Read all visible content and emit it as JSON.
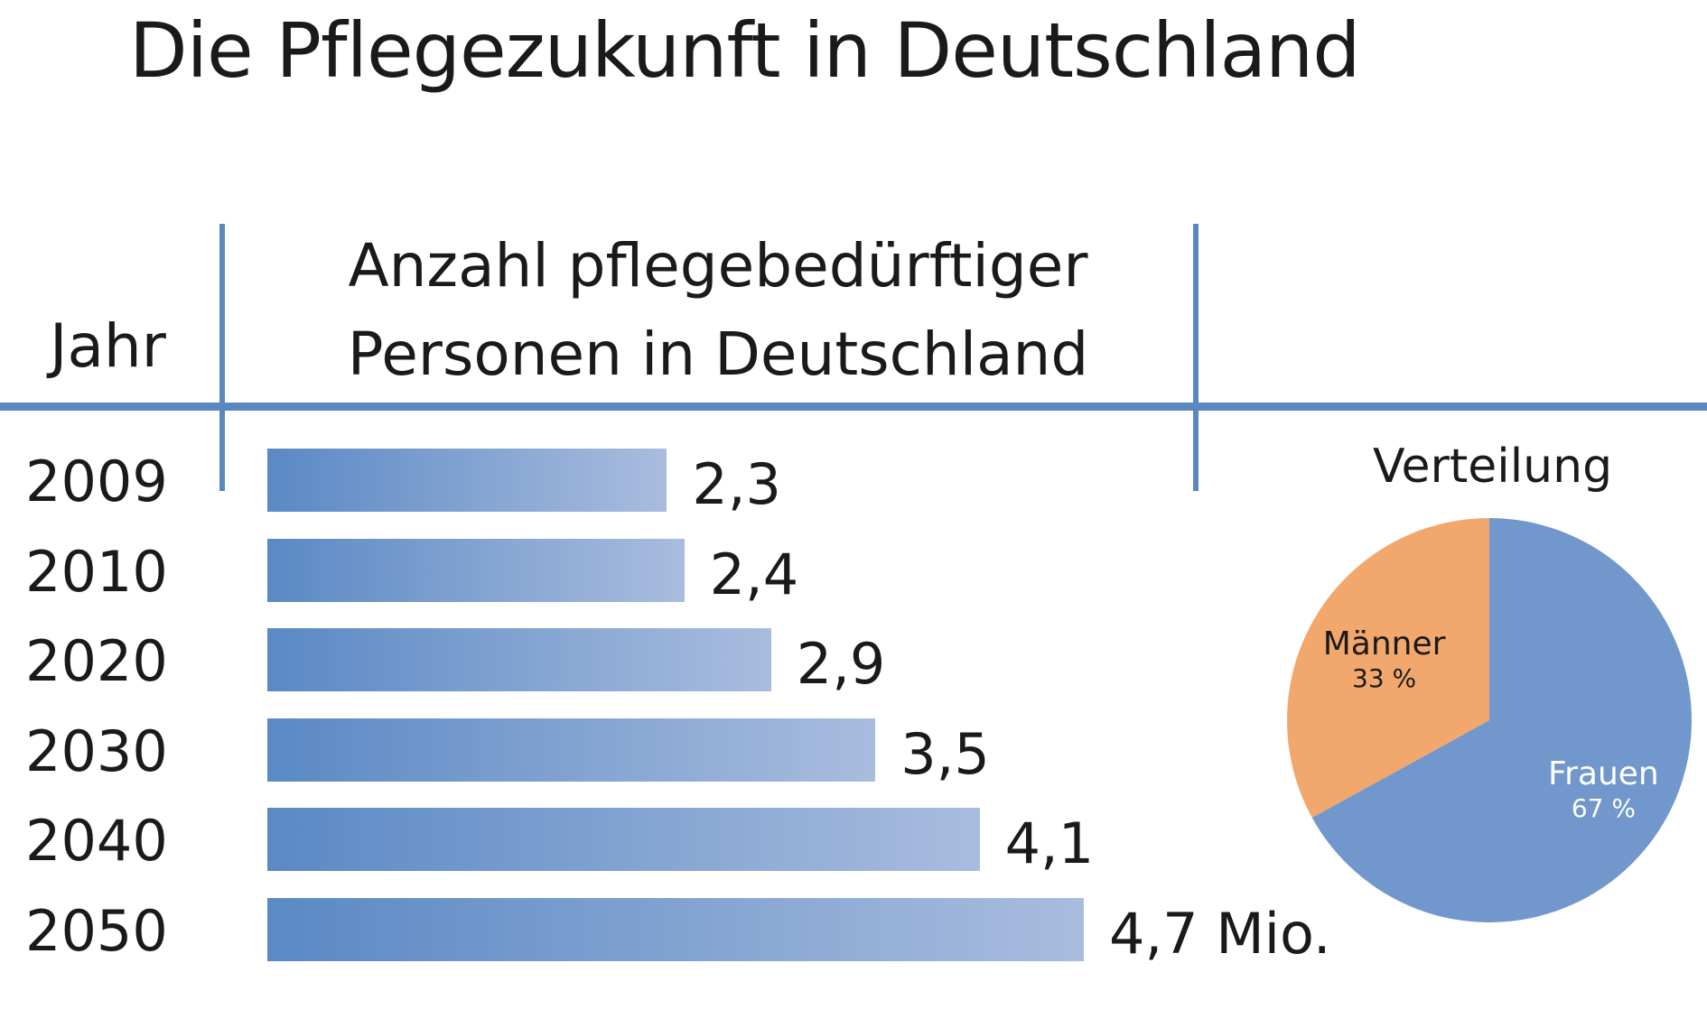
{
  "title": "Die Pflegezukunft in Deutschland",
  "header": {
    "year_label": "Jahr",
    "count_label_line1": "Anzahl pflegebedürftiger",
    "count_label_line2": "Personen in Deutschland"
  },
  "colors": {
    "rule": "#5b87c0",
    "bar_start": "#5a89c4",
    "bar_end": "#a9bcde",
    "frauen": "#7297cc",
    "maenner": "#f2a86c"
  },
  "chart_data": [
    {
      "type": "bar",
      "orientation": "horizontal",
      "categories": [
        "2009",
        "2010",
        "2020",
        "2030",
        "2040",
        "2050"
      ],
      "values": [
        2.3,
        2.4,
        2.9,
        3.5,
        4.1,
        4.7
      ],
      "value_labels": [
        "2,3",
        "2,4",
        "2,9",
        "3,5",
        "4,1",
        "4,7 Mio."
      ],
      "xlabel": "Anzahl pflegebedürftiger Personen in Deutschland",
      "ylabel": "Jahr"
    },
    {
      "type": "pie",
      "title": "Verteilung",
      "slices": [
        {
          "name": "Frauen",
          "value": 67,
          "label": "67 %",
          "color": "#7297cc"
        },
        {
          "name": "Männer",
          "value": 33,
          "label": "33 %",
          "color": "#f2a86c"
        }
      ]
    }
  ]
}
